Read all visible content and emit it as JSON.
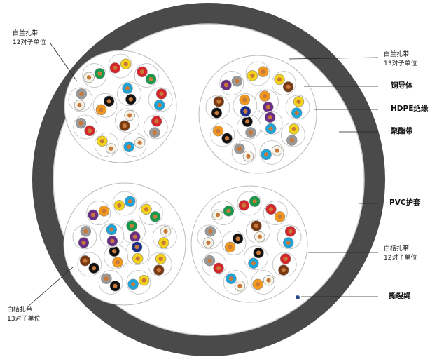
{
  "labels": {
    "tl_name": "白兰扎带",
    "tl_unit": "12对子单位",
    "tr_name": "白兰扎带",
    "tr_unit": "13对子单位",
    "copper": "铜导体",
    "hdpe": "HDPE绝缘",
    "polyester": "聚酯带",
    "pvc": "PVC护套",
    "br_name": "白桔扎带",
    "br_unit": "12对子单位",
    "ripcord": "撕裂绳",
    "bl_name": "白桔扎带",
    "bl_unit": "13对子单位"
  },
  "colors": {
    "sheath": "#4a4a4a",
    "copper": "#c8793a",
    "wire_colors": {
      "white": "#f6f2e6",
      "red": "#d6262b",
      "orange": "#f39a1e",
      "green": "#149a4a",
      "blue": "#1aa6dc",
      "brown": "#7a3a12",
      "gray": "#9a9a9a",
      "black": "#111111",
      "purple": "#6a2e86",
      "yellow": "#f2d21a",
      "navy": "#1b2f8f"
    }
  },
  "bundles": [
    {
      "position": "top-left",
      "pairs": [
        [
          "red",
          "yellow"
        ],
        [
          "red",
          "green"
        ],
        [
          "red",
          "blue"
        ],
        [
          "red",
          "gray"
        ],
        [
          "white",
          "blue"
        ],
        [
          "white",
          "yellow"
        ],
        [
          "red",
          "gray"
        ],
        [
          "white",
          "gray"
        ],
        [
          "white",
          "green"
        ],
        [
          "black",
          "blue"
        ],
        [
          "white",
          "brown"
        ],
        [
          "black",
          "orange"
        ]
      ]
    },
    {
      "position": "top-right",
      "pairs": [
        [
          "yellow",
          "orange"
        ],
        [
          "yellow",
          "brown"
        ],
        [
          "yellow",
          "blue"
        ],
        [
          "yellow",
          "gray"
        ],
        [
          "white",
          "blue"
        ],
        [
          "white",
          "gray"
        ],
        [
          "black",
          "orange"
        ],
        [
          "black",
          "brown"
        ],
        [
          "purple",
          "gray"
        ],
        [
          "purple",
          "orange"
        ],
        [
          "purple",
          "blue"
        ],
        [
          "black",
          "gray"
        ],
        [
          "navy",
          "orange"
        ]
      ]
    },
    {
      "position": "bottom-left",
      "pairs": [
        [
          "yellow",
          "blue"
        ],
        [
          "yellow",
          "green"
        ],
        [
          "white",
          "yellow"
        ],
        [
          "yellow",
          "brown"
        ],
        [
          "yellow",
          "blue"
        ],
        [
          "black",
          "gray"
        ],
        [
          "black",
          "brown"
        ],
        [
          "purple",
          "gray"
        ],
        [
          "purple",
          "orange"
        ],
        [
          "purple",
          "green"
        ],
        [
          "navy",
          "yellow"
        ],
        [
          "black",
          "orange"
        ],
        [
          "purple",
          "blue"
        ]
      ]
    },
    {
      "position": "bottom-right",
      "pairs": [
        [
          "red",
          "green"
        ],
        [
          "red",
          "orange"
        ],
        [
          "red",
          "blue"
        ],
        [
          "red",
          "brown"
        ],
        [
          "white",
          "orange"
        ],
        [
          "white",
          "blue"
        ],
        [
          "red",
          "gray"
        ],
        [
          "white",
          "gray"
        ],
        [
          "white",
          "green"
        ],
        [
          "white",
          "brown"
        ],
        [
          "black",
          "blue"
        ],
        [
          "black",
          "orange"
        ]
      ]
    }
  ]
}
